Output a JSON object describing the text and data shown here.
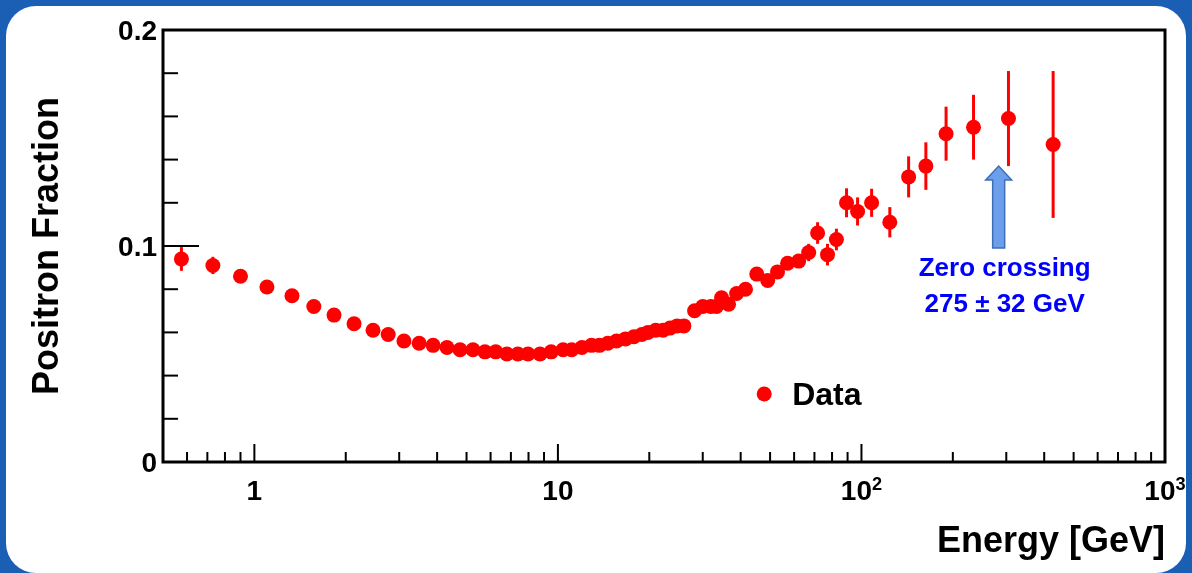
{
  "chart_data": {
    "type": "scatter",
    "xlabel": "Energy [GeV]",
    "ylabel": "Positron Fraction",
    "log": "x",
    "xlim": [
      0.5,
      1000
    ],
    "ylim": [
      0,
      0.2
    ],
    "xticks": [
      {
        "value": 0.6,
        "label": null
      },
      {
        "value": 0.7,
        "label": null
      },
      {
        "value": 0.8,
        "label": null
      },
      {
        "value": 0.9,
        "label": null
      },
      1,
      {
        "value": 2,
        "label": null
      },
      {
        "value": 3,
        "label": null
      },
      {
        "value": 4,
        "label": null
      },
      {
        "value": 5,
        "label": null
      },
      {
        "value": 6,
        "label": null
      },
      {
        "value": 7,
        "label": null
      },
      {
        "value": 8,
        "label": null
      },
      {
        "value": 9,
        "label": null
      },
      10,
      {
        "value": 20,
        "label": null
      },
      {
        "value": 30,
        "label": null
      },
      {
        "value": 40,
        "label": null
      },
      {
        "value": 50,
        "label": null
      },
      {
        "value": 60,
        "label": null
      },
      {
        "value": 70,
        "label": null
      },
      {
        "value": 80,
        "label": null
      },
      {
        "value": 90,
        "label": null
      },
      {
        "value": 100,
        "label": "10$^{2}$"
      },
      {
        "value": 200,
        "label": null
      },
      {
        "value": 300,
        "label": null
      },
      {
        "value": 400,
        "label": null
      },
      {
        "value": 500,
        "label": null
      },
      {
        "value": 600,
        "label": null
      },
      {
        "value": 700,
        "label": null
      },
      {
        "value": 800,
        "label": null
      },
      {
        "value": 900,
        "label": null
      },
      {
        "value": 1000,
        "label": "10$^{3}$"
      }
    ],
    "yticks": [
      0,
      {
        "value": 0.02,
        "label": null
      },
      {
        "value": 0.04,
        "label": null
      },
      {
        "value": 0.06,
        "label": null
      },
      {
        "value": 0.08,
        "label": null
      },
      0.1,
      {
        "value": 0.12,
        "label": null
      },
      {
        "value": 0.14,
        "label": null
      },
      {
        "value": 0.16,
        "label": null
      },
      {
        "value": 0.18,
        "label": null
      },
      0.2
    ],
    "grid": false,
    "legend": "bottom right",
    "marker": "circle",
    "annotations": [
      "Zero crossing\n275 ± 32 GeV"
    ],
    "series": [
      {
        "name": "Data",
        "color": "#ff0000",
        "x": [
          0.575,
          0.73,
          0.9,
          1.1,
          1.33,
          1.57,
          1.83,
          2.13,
          2.46,
          2.76,
          3.11,
          3.49,
          3.88,
          4.31,
          4.76,
          5.25,
          5.75,
          6.24,
          6.79,
          7.38,
          7.97,
          8.73,
          9.5,
          10.4,
          11.1,
          12.0,
          12.9,
          13.7,
          14.6,
          15.6,
          16.7,
          17.8,
          18.9,
          19.8,
          21.0,
          22.2,
          23.4,
          24.7,
          26.0,
          28.2,
          30.0,
          31.9,
          33.3,
          34.6,
          36.5,
          38.8,
          41.5,
          45.2,
          49.1,
          52.9,
          57.1,
          62.1,
          67.0,
          71.7,
          77.3,
          82.7,
          89.3,
          97.1,
          108,
          124,
          143,
          163,
          190,
          234,
          305,
          428
        ],
        "values": [
          0.094,
          0.091,
          0.086,
          0.081,
          0.077,
          0.072,
          0.068,
          0.064,
          0.061,
          0.059,
          0.056,
          0.055,
          0.054,
          0.053,
          0.052,
          0.052,
          0.051,
          0.051,
          0.05,
          0.05,
          0.05,
          0.05,
          0.051,
          0.052,
          0.052,
          0.053,
          0.054,
          0.054,
          0.055,
          0.056,
          0.057,
          0.058,
          0.059,
          0.06,
          0.061,
          0.061,
          0.062,
          0.063,
          0.063,
          0.07,
          0.072,
          0.072,
          0.072,
          0.076,
          0.073,
          0.078,
          0.08,
          0.087,
          0.084,
          0.088,
          0.092,
          0.093,
          0.097,
          0.106,
          0.096,
          0.103,
          0.12,
          0.116,
          0.12,
          0.111,
          0.132,
          0.137,
          0.152,
          0.155,
          0.159,
          0.147
        ],
        "errors": [
          0.0055,
          0.004,
          null,
          null,
          null,
          null,
          null,
          null,
          null,
          null,
          null,
          null,
          null,
          null,
          null,
          null,
          null,
          null,
          null,
          null,
          null,
          null,
          null,
          null,
          null,
          null,
          null,
          null,
          null,
          null,
          null,
          null,
          null,
          null,
          null,
          null,
          null,
          null,
          null,
          null,
          null,
          null,
          null,
          null,
          null,
          null,
          null,
          null,
          null,
          null,
          0.003,
          0.003,
          0.004,
          0.005,
          0.005,
          0.005,
          0.0067,
          0.0065,
          0.0065,
          0.007,
          0.0095,
          0.011,
          0.0125,
          0.015,
          0.022,
          0.034
        ]
      }
    ]
  }
}
